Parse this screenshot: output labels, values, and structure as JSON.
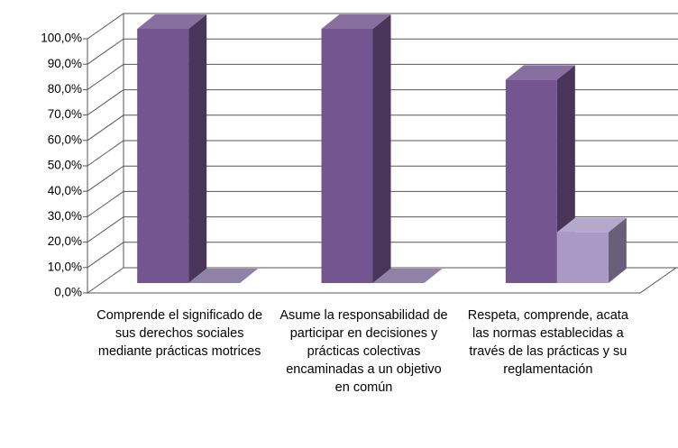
{
  "chart_data": {
    "type": "bar3d",
    "categories": [
      "Comprende el significado de sus derechos sociales mediante prácticas motrices",
      "Asume la responsabilidad de participar en decisiones y prácticas colectivas encaminadas a un objetivo en común",
      "Respeta, comprende, acata las normas establecidas a través de las prácticas y su reglamentación"
    ],
    "series": [
      {
        "color": "#74558f",
        "values": [
          100,
          100,
          80
        ]
      },
      {
        "color": "#a999c4",
        "values": [
          0,
          0,
          20
        ]
      }
    ],
    "ylim": [
      0,
      100
    ],
    "yticks": [
      {
        "value": 0,
        "label": "0,0%"
      },
      {
        "value": 10,
        "label": "10,0%"
      },
      {
        "value": 20,
        "label": "20,0%"
      },
      {
        "value": 30,
        "label": "30,0%"
      },
      {
        "value": 40,
        "label": "40,0%"
      },
      {
        "value": 50,
        "label": "50,0%"
      },
      {
        "value": 60,
        "label": "60,0%"
      },
      {
        "value": 70,
        "label": "70,0%"
      },
      {
        "value": 80,
        "label": "80,0%"
      },
      {
        "value": 90,
        "label": "90,0%"
      },
      {
        "value": 100,
        "label": "100,0%"
      }
    ],
    "grid": true
  }
}
